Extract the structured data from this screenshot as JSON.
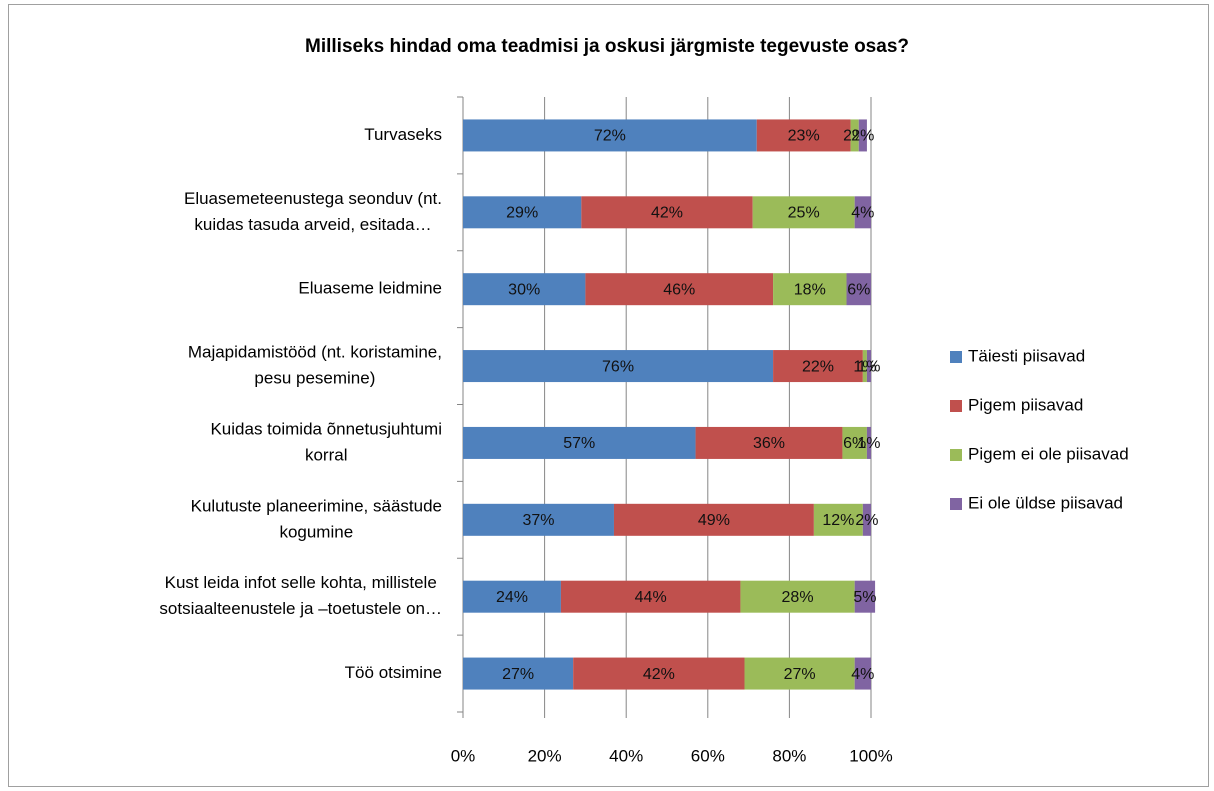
{
  "chart_data": {
    "type": "stacked_barh",
    "title": "Milliseks hindad oma teadmisi ja oskusi järgmiste tegevuste osas?",
    "categories": [
      [
        "Turvaseks"
      ],
      [
        "Eluasemeteenustega seonduv (nt.",
        "kuidas tasuda arveid, esitada…"
      ],
      [
        "Eluaseme leidmine"
      ],
      [
        "Majapidamistööd (nt. koristamine,",
        "pesu pesemine)"
      ],
      [
        "Kuidas toimida õnnetusjuhtumi",
        "korral"
      ],
      [
        "Kulutuste planeerimine, säästude",
        "kogumine"
      ],
      [
        "Kust leida infot selle kohta, millistele",
        "sotsiaalteenustele ja –toetustele on…"
      ],
      [
        "Töö otsimine"
      ]
    ],
    "series": [
      {
        "name": "Täiesti piisavad",
        "color": "#4f81bd",
        "values": [
          72,
          29,
          30,
          76,
          57,
          37,
          24,
          27
        ],
        "value_labels": [
          "72%",
          "29%",
          "30%",
          "76%",
          "57%",
          "37%",
          "24%",
          "27%"
        ]
      },
      {
        "name": "Pigem piisavad",
        "color": "#c0504d",
        "values": [
          23,
          42,
          46,
          22,
          36,
          49,
          44,
          42
        ],
        "value_labels": [
          "23%",
          "42%",
          "46%",
          "22%",
          "36%",
          "49%",
          "44%",
          "42%"
        ]
      },
      {
        "name": "Pigem ei ole piisavad",
        "color": "#9bbb59",
        "values": [
          2,
          25,
          18,
          1,
          6,
          12,
          28,
          27
        ],
        "value_labels": [
          "2%",
          "25%",
          "18%",
          "1%",
          "6%",
          "12%",
          "28%",
          "27%"
        ]
      },
      {
        "name": "Ei ole üldse piisavad",
        "color": "#8064a2",
        "values": [
          2,
          4,
          6,
          1,
          1,
          2,
          5,
          4
        ],
        "value_labels": [
          "2%",
          "4%",
          "6%",
          "1%",
          "1%",
          "2%",
          "5%",
          "4%"
        ]
      }
    ],
    "xlim": [
      0,
      100
    ],
    "xticks": [
      {
        "value": 0,
        "label": "0%"
      },
      {
        "value": 20,
        "label": "20%"
      },
      {
        "value": 40,
        "label": "40%"
      },
      {
        "value": 60,
        "label": "60%"
      },
      {
        "value": 80,
        "label": "80%"
      },
      {
        "value": 100,
        "label": "100%"
      }
    ],
    "grid": true,
    "legend": "right"
  }
}
